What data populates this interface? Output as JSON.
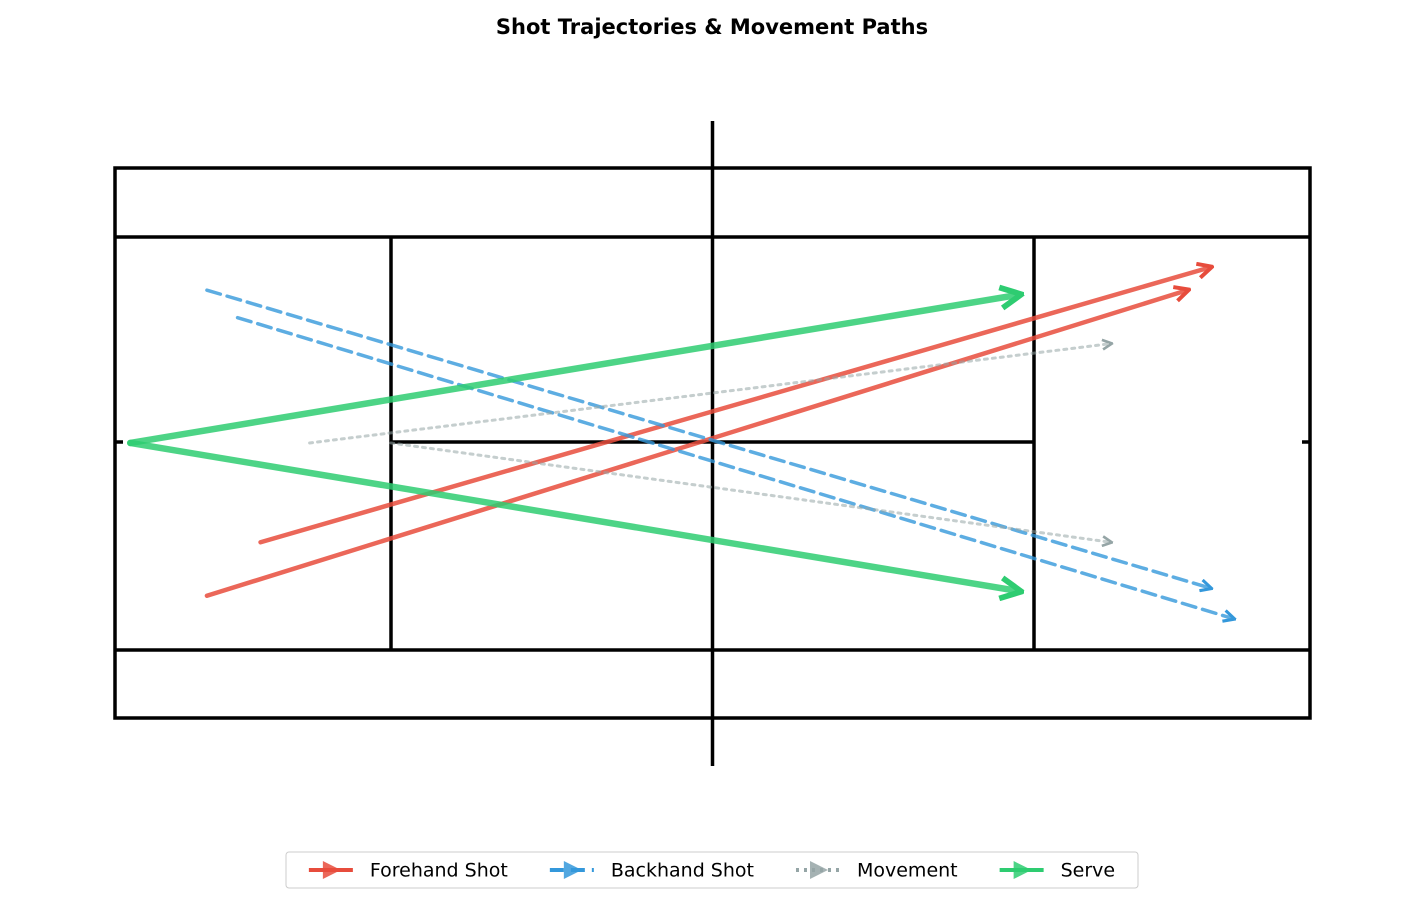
{
  "chart_data": {
    "type": "arrows",
    "title": "Shot Trajectories & Movement Paths",
    "xlim": [
      -5,
      83
    ],
    "ylim": [
      -5,
      41
    ],
    "series": [
      {
        "name": "Forehand Shot",
        "color": "#e74c3c",
        "linestyle": "solid",
        "x0": [
          9.5,
          6
        ],
        "y0": [
          11.5,
          8
        ],
        "x1": [
          71.5,
          70
        ],
        "y1": [
          29.5,
          28
        ]
      },
      {
        "name": "Backhand Shot",
        "color": "#3498db",
        "linestyle": "dashed",
        "x0": [
          6,
          8
        ],
        "y0": [
          28,
          26.2
        ],
        "x1": [
          71.5,
          73
        ],
        "y1": [
          8.5,
          6.5
        ]
      },
      {
        "name": "Movement",
        "color": "#95a5a6",
        "linestyle": "dotted",
        "x0": [
          12.7,
          18
        ],
        "y0": [
          18,
          18
        ],
        "x1": [
          65,
          65
        ],
        "y1": [
          24.5,
          11.5
        ]
      },
      {
        "name": "Serve",
        "color": "#2ecc71",
        "linestyle": "solid",
        "x0": [
          1,
          1
        ],
        "y0": [
          18,
          18
        ],
        "x1": [
          59,
          59
        ],
        "y1": [
          27.7,
          8.3
        ]
      }
    ]
  }
}
